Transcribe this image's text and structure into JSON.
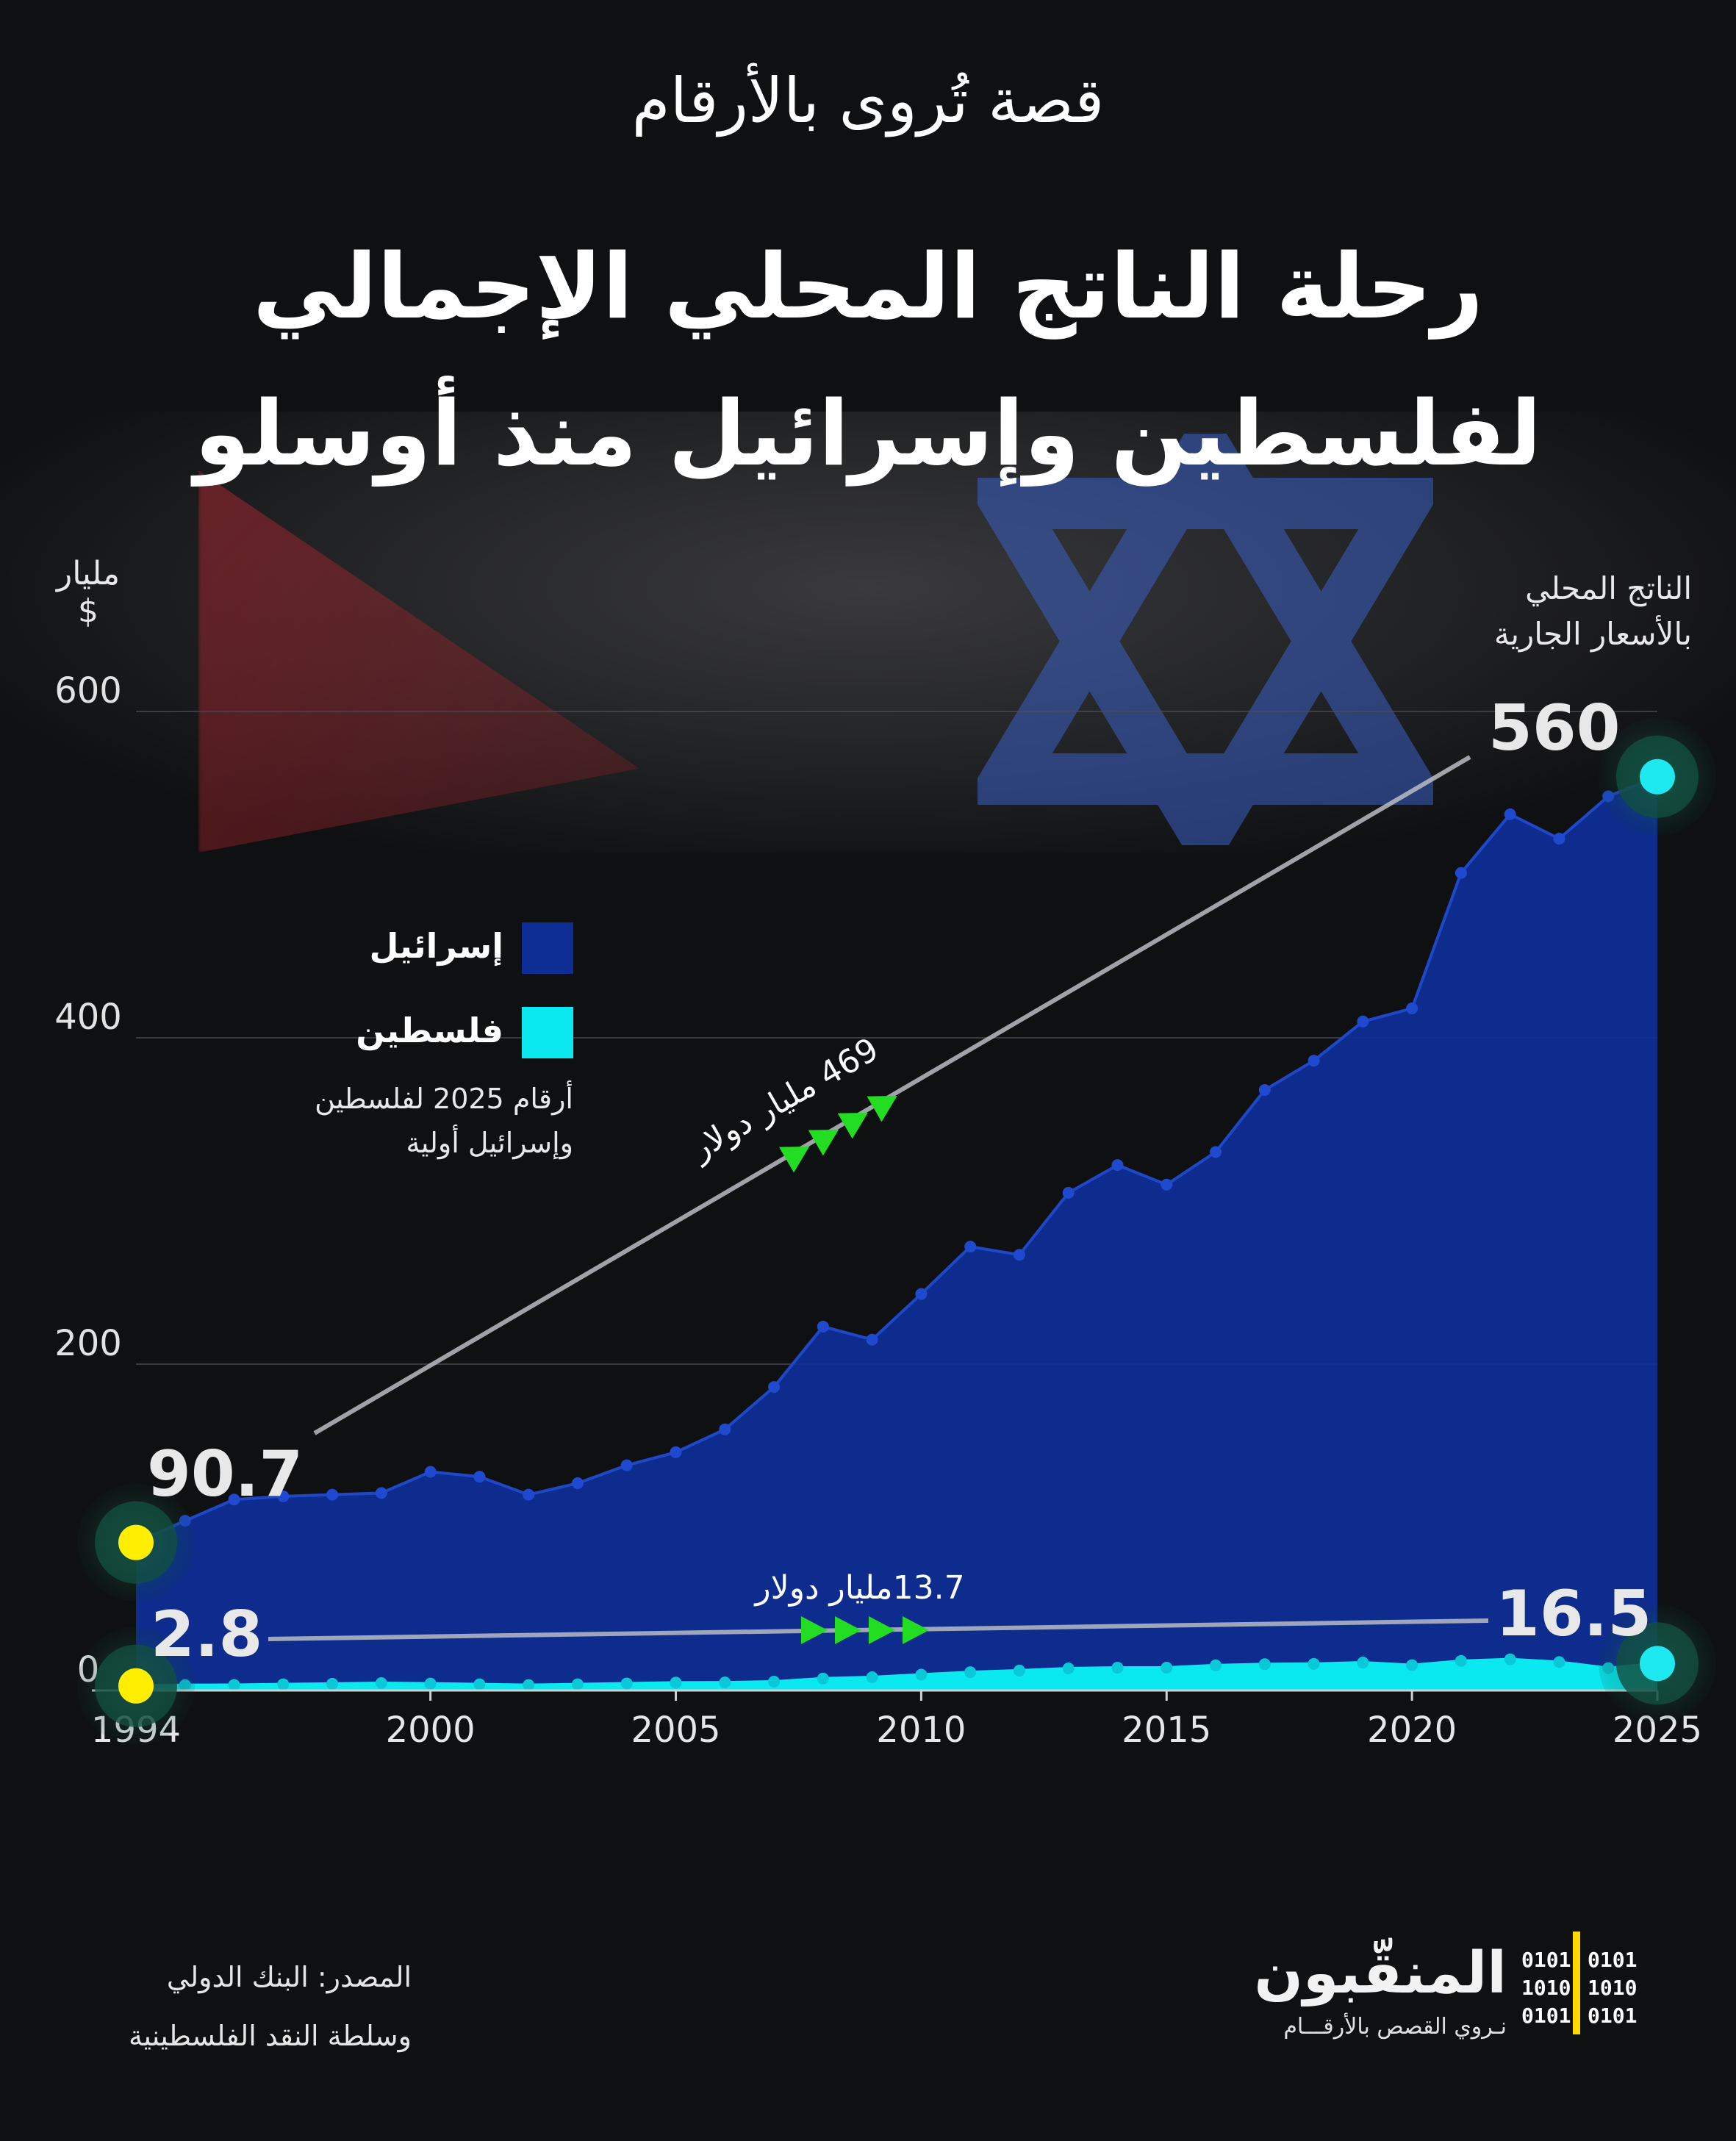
{
  "header": {
    "kicker": "قصة تُروى بالأرقام",
    "title_line1": "رحلة الناتج المحلي الإجمالي",
    "title_line2": "لفلسطين وإسرائيل منذ أوسلو"
  },
  "y_unit": {
    "line1": "مليار",
    "line2": "$"
  },
  "series_note": {
    "line1": "الناتج المحلي",
    "line2": "بالأسعار الجارية"
  },
  "legend": {
    "israel": "إسرائيل",
    "palestine": "فلسطين",
    "note_line1": "أرقام 2025 لفلسطين",
    "note_line2": "وإسرائيل أولية"
  },
  "callouts": {
    "israel_start": "90.7",
    "israel_end": "560",
    "israel_growth": "469 مليار دولار",
    "palestine_start": "2.8",
    "palestine_end": "16.5",
    "palestine_growth": "13.7مليار دولار"
  },
  "footer": {
    "source_line1": "المصدر: البنك الدولي",
    "source_line2": "وسلطة النقد الفلسطينية",
    "brand_name": "المنقّبون",
    "brand_tagline": "نـروي القصص بالأرقـــام",
    "brand_bits": [
      "0101",
      "1010",
      "0101",
      "0101",
      "1010",
      "0101"
    ]
  },
  "colors": {
    "israel_fill": "#0e2e95",
    "israel_line": "#1e48c8",
    "palestine_fill": "#0ae8f0",
    "start_marker": "#ffee00",
    "end_marker": "#1ee8f0",
    "arrow": "#22dd22",
    "trend_line": "#b9bcc4"
  },
  "chart_data": {
    "type": "area",
    "x": [
      1994,
      1995,
      1996,
      1997,
      1998,
      1999,
      2000,
      2001,
      2002,
      2003,
      2004,
      2005,
      2006,
      2007,
      2008,
      2009,
      2010,
      2011,
      2012,
      2013,
      2014,
      2015,
      2016,
      2017,
      2018,
      2019,
      2020,
      2021,
      2022,
      2023,
      2024,
      2025
    ],
    "series": [
      {
        "name": "إسرائيل",
        "values": [
          90.7,
          104,
          117,
          119,
          120,
          121,
          134,
          131,
          120,
          127,
          138,
          146,
          160,
          186,
          223,
          215,
          243,
          272,
          267,
          305,
          322,
          310,
          330,
          368,
          386,
          410,
          418,
          501,
          537,
          522,
          548,
          560
        ]
      },
      {
        "name": "فلسطين",
        "values": [
          2.8,
          3.3,
          3.4,
          3.8,
          4.1,
          4.5,
          4.2,
          3.8,
          3.3,
          3.8,
          4.3,
          4.8,
          4.9,
          5.4,
          7.3,
          8.1,
          9.7,
          11.2,
          12.2,
          13.5,
          13.99,
          13.97,
          15.4,
          16.1,
          16.3,
          17.1,
          15.5,
          18.1,
          19.1,
          17.4,
          13.7,
          16.5
        ]
      }
    ],
    "x_ticks": [
      1994,
      2000,
      2005,
      2010,
      2015,
      2020,
      2025
    ],
    "y_ticks": [
      0,
      200,
      400,
      600
    ],
    "xlim": [
      1994,
      2025
    ],
    "ylim": [
      0,
      600
    ],
    "grid": true,
    "legend_position": "left"
  }
}
